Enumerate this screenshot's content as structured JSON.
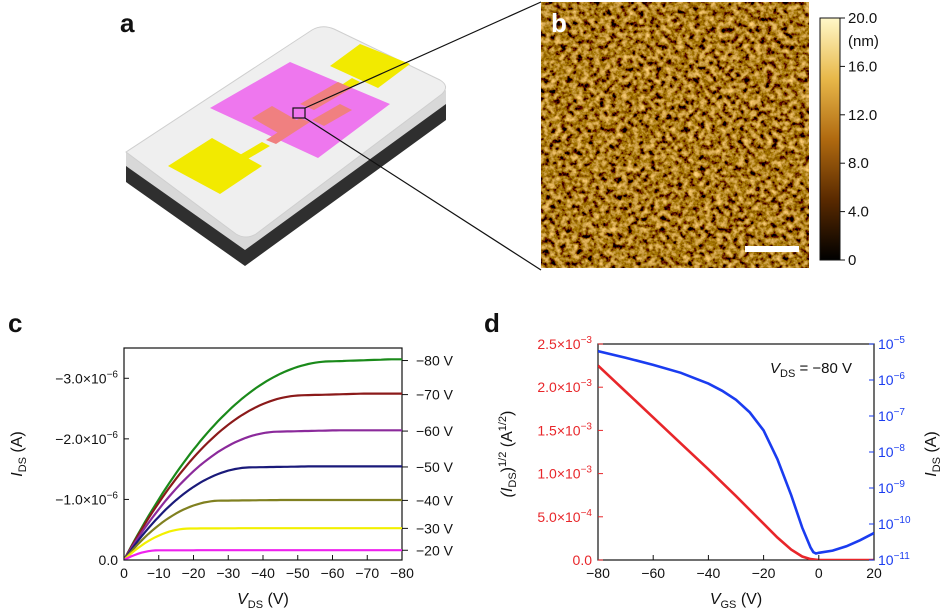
{
  "panels": {
    "a": "a",
    "b": "b",
    "c": "c",
    "d": "d"
  },
  "colors": {
    "substrate_top": "#ececec",
    "substrate_side": "#3a3a3a",
    "electrode": "#f2ea00",
    "channel": "#ee77ee",
    "overlap": "#f08080",
    "afm_dark": "#3a1c00",
    "afm_light": "#f6dc6a"
  },
  "colorbar": {
    "ticks": [
      "20.0",
      "16.0",
      "12.0",
      "8.0",
      "4.0",
      "0"
    ],
    "unit": "(nm)"
  },
  "chart_data": [
    {
      "panel": "c",
      "type": "line",
      "title": "",
      "xlabel": "V",
      "xlabel_sub": "DS",
      "xlabel_unit": " (V)",
      "ylabel": "I",
      "ylabel_sub": "DS",
      "ylabel_unit": " (A)",
      "xlim": [
        0,
        -80
      ],
      "ylim": [
        0,
        -3.5e-06
      ],
      "xticks": [
        "0",
        "−10",
        "−20",
        "−30",
        "−40",
        "−50",
        "−60",
        "−70",
        "−80"
      ],
      "yticks": [
        {
          "mant": "0.0",
          "exp": ""
        },
        {
          "mant": "−1.0×10",
          "exp": "−6"
        },
        {
          "mant": "−2.0×10",
          "exp": "−6"
        },
        {
          "mant": "−3.0×10",
          "exp": "−6"
        }
      ],
      "series": [
        {
          "name": "−80 V",
          "color": "#1a8a1a",
          "saturation": -3.28e-06,
          "vsat": -60
        },
        {
          "name": "−70 V",
          "color": "#8b1a1a",
          "saturation": -2.72e-06,
          "vsat": -52
        },
        {
          "name": "−60 V",
          "color": "#8b2a9b",
          "saturation": -2.12e-06,
          "vsat": -45
        },
        {
          "name": "−50 V",
          "color": "#1a1a7a",
          "saturation": -1.53e-06,
          "vsat": -37
        },
        {
          "name": "−40 V",
          "color": "#808020",
          "saturation": -9.8e-07,
          "vsat": -28
        },
        {
          "name": "−30 V",
          "color": "#f2f000",
          "saturation": -5.2e-07,
          "vsat": -19
        },
        {
          "name": "−20 V",
          "color": "#ee22ee",
          "saturation": -1.6e-07,
          "vsat": -10
        }
      ]
    },
    {
      "panel": "d",
      "type": "line",
      "annotation": {
        "main": "V",
        "sub": "DS",
        "rest": " = −80 V"
      },
      "xlabel": "V",
      "xlabel_sub": "GS",
      "xlabel_unit": " (V)",
      "ylabel_left": {
        "pre": "(I",
        "sub": "DS",
        "post": ")",
        "sup": "1/2",
        "unit_pre": " (A",
        "unit_sup": "1/2",
        "unit_post": ")"
      },
      "ylabel_right": {
        "main": "I",
        "sub": "DS",
        "unit": " (A)"
      },
      "xlim": [
        -80,
        20
      ],
      "ylim_left": [
        0,
        0.0025
      ],
      "ylim_right_log": [
        -11,
        -5
      ],
      "xticks": [
        "−80",
        "−60",
        "−40",
        "−20",
        "0",
        "20"
      ],
      "yticks_left": [
        {
          "mant": "0.0",
          "exp": ""
        },
        {
          "mant": "5.0×10",
          "exp": "−4"
        },
        {
          "mant": "1.0×10",
          "exp": "−3"
        },
        {
          "mant": "1.5×10",
          "exp": "−3"
        },
        {
          "mant": "2.0×10",
          "exp": "−3"
        },
        {
          "mant": "2.5×10",
          "exp": "−3"
        }
      ],
      "yticks_right": [
        "−11",
        "−10",
        "−9",
        "−8",
        "−7",
        "−6",
        "−5"
      ],
      "yticks_right_base": "10",
      "sqrt_series": {
        "name": "(IDS)^1/2",
        "color": "#e8262a",
        "x": [
          -80,
          -70,
          -60,
          -50,
          -40,
          -30,
          -20,
          -15,
          -10,
          -6,
          -3,
          0,
          10,
          20
        ],
        "y": [
          0.00225,
          0.00195,
          0.00165,
          0.00135,
          0.00105,
          0.00074,
          0.00042,
          0.00026,
          0.00012,
          4e-05,
          1e-05,
          0.0,
          0.0,
          0.0
        ]
      },
      "log_series": {
        "name": "IDS",
        "color": "#1a3cf0",
        "x": [
          -80,
          -70,
          -60,
          -50,
          -40,
          -35,
          -30,
          -25,
          -20,
          -15,
          -10,
          -6,
          -3,
          -2,
          -1,
          0,
          5,
          10,
          15,
          20
        ],
        "log10y": [
          -5.2,
          -5.38,
          -5.58,
          -5.8,
          -6.1,
          -6.3,
          -6.55,
          -6.9,
          -7.4,
          -8.2,
          -9.2,
          -10.1,
          -10.65,
          -10.78,
          -10.82,
          -10.8,
          -10.74,
          -10.62,
          -10.45,
          -10.25
        ]
      }
    }
  ]
}
